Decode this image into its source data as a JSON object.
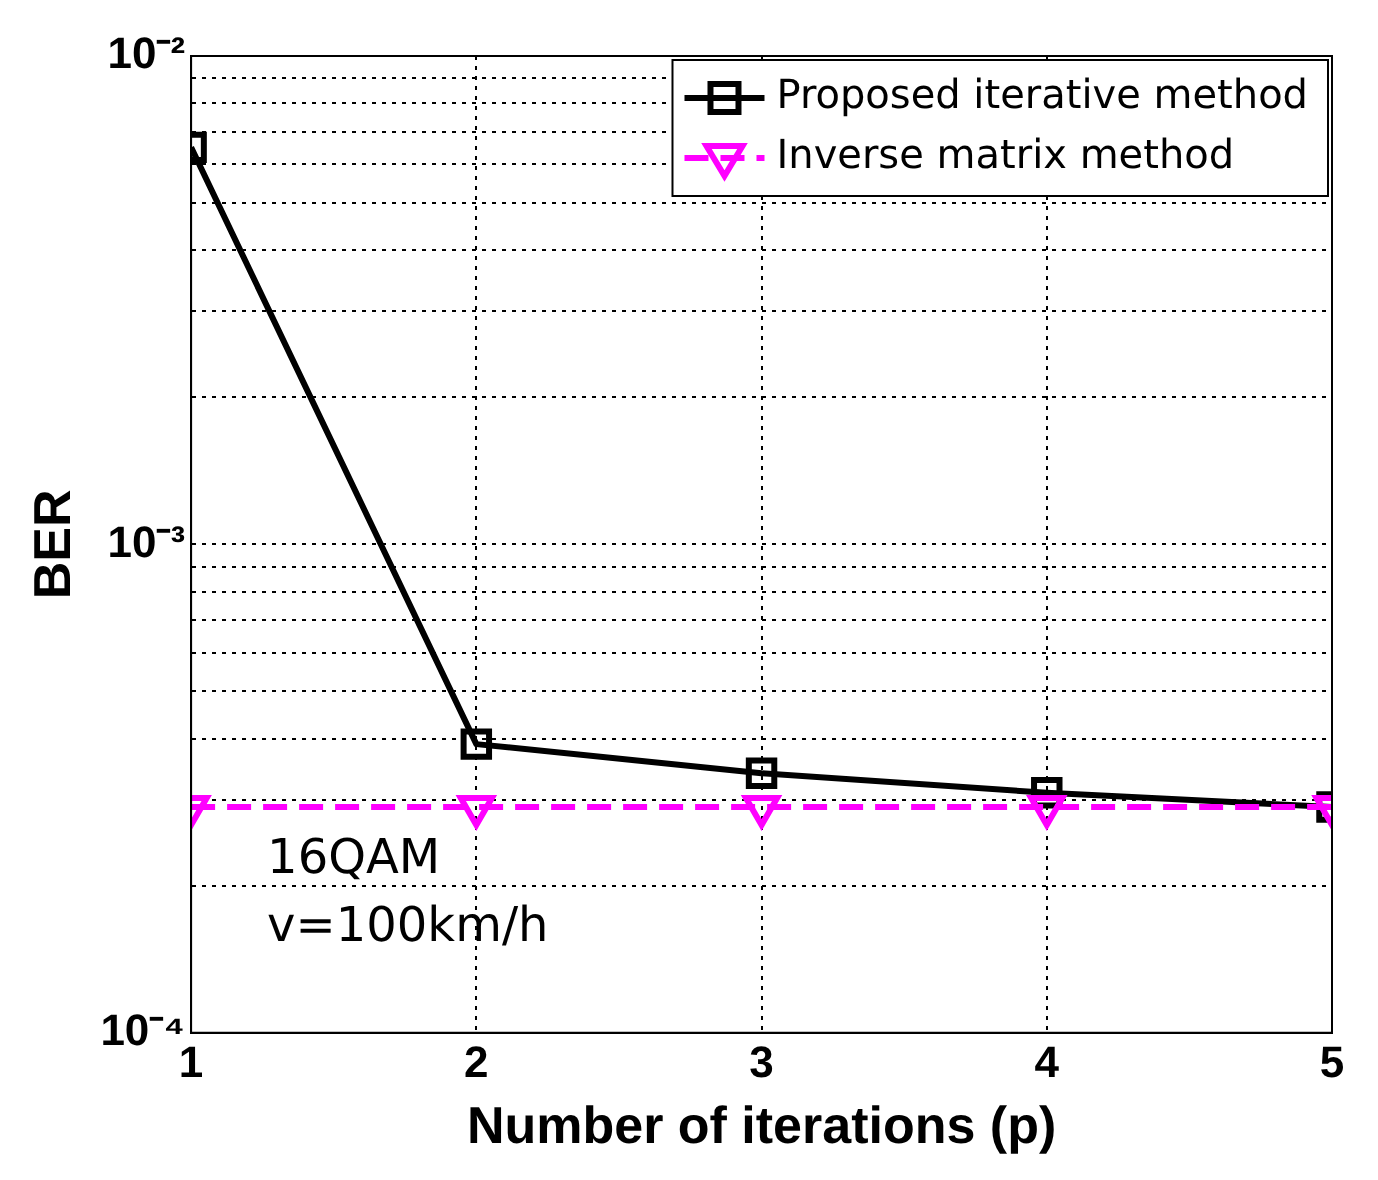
{
  "chart_data": {
    "type": "line",
    "xlabel": "Number of iterations (p)",
    "ylabel": "BER",
    "x": [
      1,
      2,
      3,
      4,
      5
    ],
    "series": [
      {
        "name": "Proposed iterative method",
        "color": "#000000",
        "values": [
          0.0065,
          0.00039,
          0.00034,
          0.00031,
          0.00029
        ],
        "marker": "square",
        "line_style": "solid"
      },
      {
        "name": "Inverse matrix method",
        "color": "#ff00ff",
        "values": [
          0.00029,
          0.00029,
          0.00029,
          0.00029,
          0.00029
        ],
        "marker": "triangle",
        "line_style": "dashed"
      }
    ],
    "log": "y",
    "xlim": [
      1,
      5
    ],
    "xticks": [
      1,
      2,
      3,
      4,
      5
    ],
    "ylim": [
      0.0001,
      0.01
    ],
    "yticks": [
      {
        "value": 0.0001,
        "label": "10⁻⁴"
      },
      {
        "value": 0.0002,
        "label": null
      },
      {
        "value": 0.0003,
        "label": null
      },
      {
        "value": 0.0004,
        "label": null
      },
      {
        "value": 0.0005,
        "label": null
      },
      {
        "value": 0.0006,
        "label": null
      },
      {
        "value": 0.0007,
        "label": null
      },
      {
        "value": 0.0008,
        "label": null
      },
      {
        "value": 0.0009,
        "label": null
      },
      {
        "value": 0.001,
        "label": "10⁻³"
      },
      {
        "value": 0.002,
        "label": null
      },
      {
        "value": 0.003,
        "label": null
      },
      {
        "value": 0.004,
        "label": null
      },
      {
        "value": 0.005,
        "label": null
      },
      {
        "value": 0.006,
        "label": null
      },
      {
        "value": 0.007,
        "label": null
      },
      {
        "value": 0.008,
        "label": null
      },
      {
        "value": 0.009,
        "label": null
      },
      {
        "value": 0.01,
        "label": "10⁻²"
      }
    ],
    "grid": true,
    "legend": "top right",
    "annotations": [
      "16QAM",
      "v=100km/h"
    ]
  }
}
